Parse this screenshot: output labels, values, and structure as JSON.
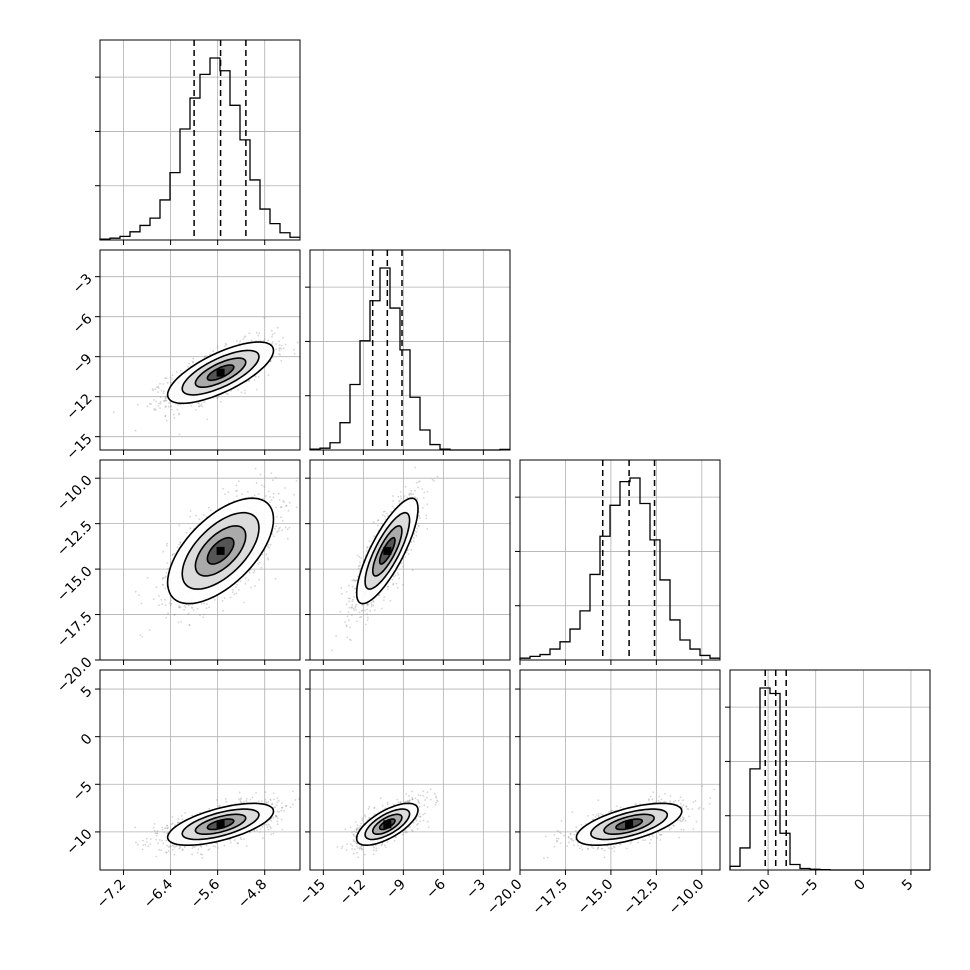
{
  "chart_data": {
    "type": "corner",
    "grid": true,
    "parameters": [
      {
        "range": [
          -7.6,
          -4.2
        ],
        "mean": -5.55,
        "sd": 0.45,
        "quantiles": [
          -6.0,
          -5.55,
          -5.12
        ],
        "ticks": [
          -7.2,
          -6.4,
          -5.6,
          -4.8
        ],
        "tick_labels": [
          "−7.2",
          "−6.4",
          "−5.6",
          "−4.8"
        ]
      },
      {
        "range": [
          -16,
          -1
        ],
        "mean": -10.2,
        "sd": 1.15,
        "quantiles": [
          -11.3,
          -10.2,
          -9.1
        ],
        "ticks": [
          -15,
          -12,
          -9,
          -6,
          -3
        ],
        "tick_labels": [
          "−15",
          "−12",
          "−9",
          "−6",
          "−3"
        ]
      },
      {
        "range": [
          -20,
          -9
        ],
        "mean": -14.0,
        "sd": 1.45,
        "quantiles": [
          -15.45,
          -14.0,
          -12.6
        ],
        "ticks": [
          -20.0,
          -17.5,
          -15.0,
          -12.5,
          -10.0
        ],
        "tick_labels": [
          "−20.0",
          "−17.5",
          "−15.0",
          "−12.5",
          "−10.0"
        ]
      },
      {
        "range": [
          -14,
          7
        ],
        "mean": -9.2,
        "sd": 1.1,
        "quantiles": [
          -10.3,
          -9.2,
          -8.1
        ],
        "ticks": [
          -10,
          -5,
          0,
          5
        ],
        "tick_labels": [
          "−10",
          "−5",
          "0",
          "5"
        ]
      }
    ],
    "correlations": [
      {
        "pair": [
          1,
          0
        ],
        "r": 0.72
      },
      {
        "pair": [
          2,
          0
        ],
        "r": 0.6
      },
      {
        "pair": [
          2,
          1
        ],
        "r": 0.8
      },
      {
        "pair": [
          3,
          0
        ],
        "r": 0.62
      },
      {
        "pair": [
          3,
          1
        ],
        "r": 0.68
      },
      {
        "pair": [
          3,
          2
        ],
        "r": 0.62
      }
    ],
    "histograms": [
      [
        0.005,
        0.01,
        0.02,
        0.045,
        0.08,
        0.12,
        0.22,
        0.37,
        0.61,
        0.78,
        0.91,
        1.0,
        0.93,
        0.74,
        0.55,
        0.33,
        0.17,
        0.09,
        0.04,
        0.015
      ],
      [
        0.005,
        0.01,
        0.04,
        0.15,
        0.36,
        0.6,
        0.82,
        1.0,
        0.78,
        0.55,
        0.29,
        0.11,
        0.03,
        0.005,
        0.0,
        0.0,
        0.0,
        0.0,
        0.0,
        0.003
      ],
      [
        0.01,
        0.02,
        0.03,
        0.06,
        0.1,
        0.17,
        0.27,
        0.47,
        0.68,
        0.85,
        0.98,
        1.0,
        0.86,
        0.66,
        0.44,
        0.22,
        0.11,
        0.06,
        0.025,
        0.01
      ],
      [
        0.02,
        0.12,
        0.55,
        0.99,
        0.96,
        0.2,
        0.03,
        0.008,
        0.004,
        0.002,
        0.0,
        0.0,
        0.0,
        0.0,
        0.0,
        0.0,
        0.0,
        0.0,
        0.0,
        0.0
      ]
    ]
  }
}
